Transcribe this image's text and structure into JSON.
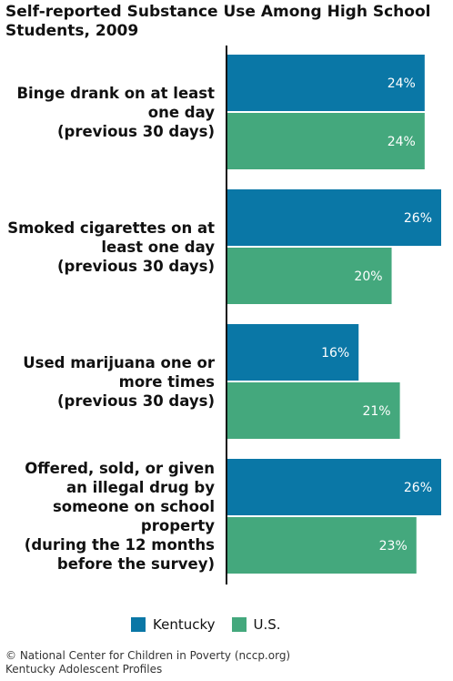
{
  "chart_data": {
    "type": "bar",
    "orientation": "horizontal",
    "title": "Self-reported Substance Use Among High School Students, 2009",
    "categories": [
      [
        "Binge drank on at least",
        "one day",
        "(previous 30 days)"
      ],
      [
        "Smoked cigarettes on at",
        "least one day",
        "(previous 30 days)"
      ],
      [
        "Used marijuana one or",
        "more times",
        "(previous 30 days)"
      ],
      [
        "Offered, sold, or given",
        "an illegal drug by",
        "someone on school",
        "property",
        "(during the 12 months",
        "before the survey)"
      ]
    ],
    "series": [
      {
        "name": "Kentucky",
        "color": "#0a77a6",
        "values": [
          24,
          26,
          16,
          26
        ],
        "labels": [
          "24%",
          "26%",
          "16%",
          "26%"
        ]
      },
      {
        "name": "U.S.",
        "color": "#44a87d",
        "values": [
          24,
          20,
          21,
          23
        ],
        "labels": [
          "24%",
          "20%",
          "21%",
          "23%"
        ]
      }
    ],
    "xlim": [
      0,
      26
    ],
    "legend": "bottom"
  },
  "footer": {
    "line1": "© National Center for Children in Poverty (nccp.org)",
    "line2": "Kentucky Adolescent Profiles"
  }
}
